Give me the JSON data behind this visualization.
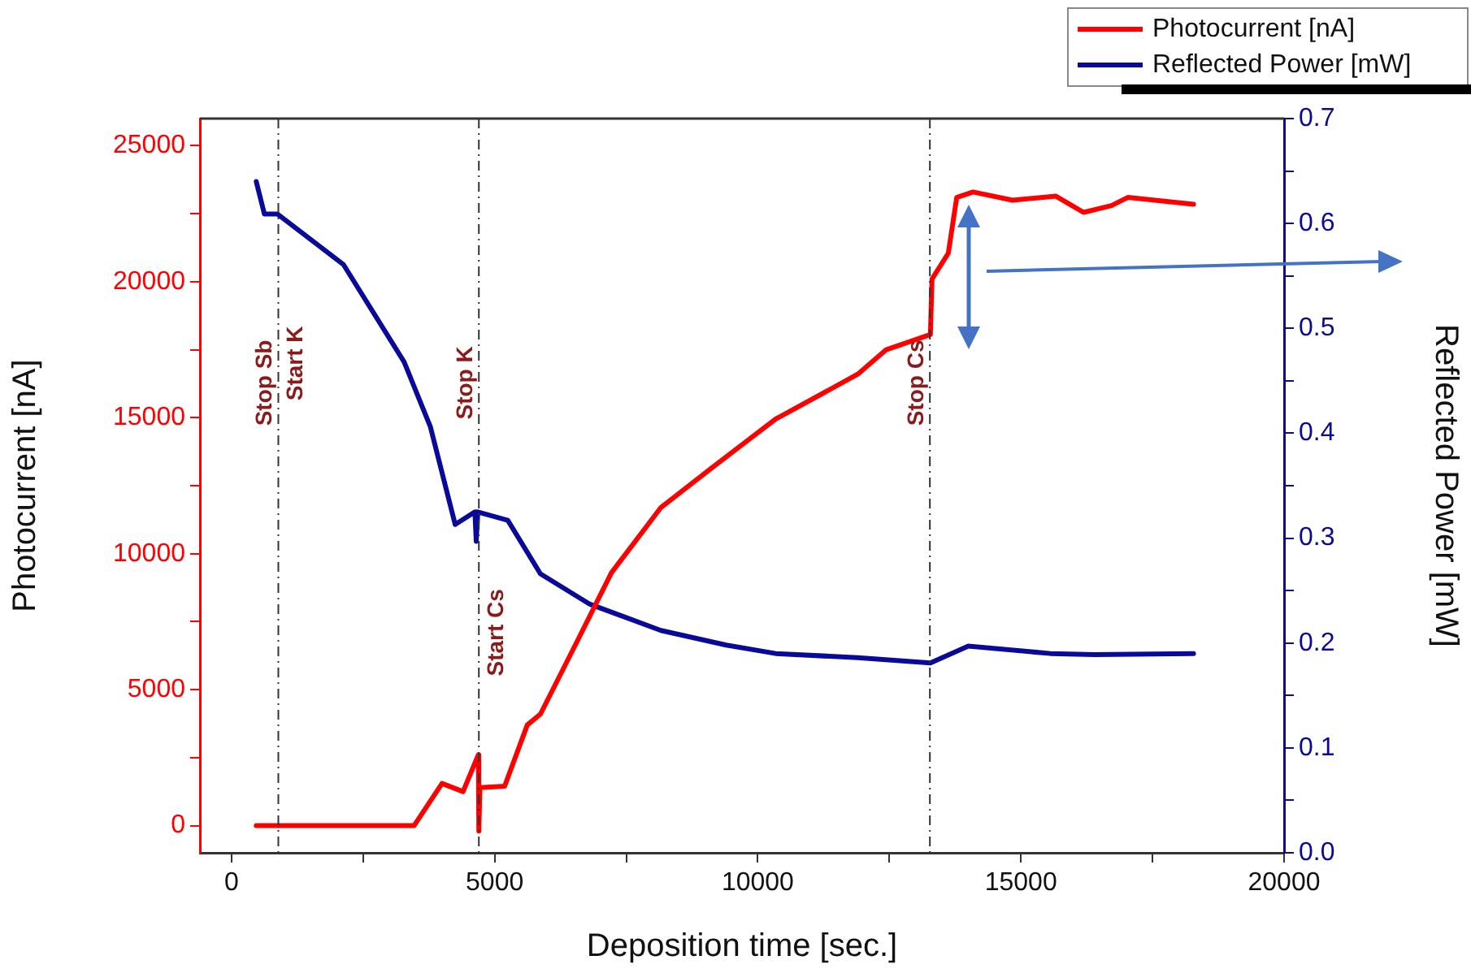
{
  "chart_data": {
    "type": "line",
    "xlabel": "Deposition time [sec.]",
    "ylabel": "Photocurrent [nA]",
    "y2label": "Reflected Power [mW]",
    "xlim": [
      -600,
      20000
    ],
    "xticks": [
      0,
      {
        "value": 2500,
        "label": null
      },
      5000,
      {
        "value": 7500,
        "label": null
      },
      10000,
      {
        "value": 12500,
        "label": null
      },
      15000,
      {
        "value": 17500,
        "label": null
      },
      20000
    ],
    "ylim": [
      -1000,
      26000
    ],
    "yticks": [
      0,
      {
        "value": 2500,
        "label": null
      },
      5000,
      {
        "value": 7500,
        "label": null
      },
      10000,
      {
        "value": 12500,
        "label": null
      },
      15000,
      {
        "value": 17500,
        "label": null
      },
      20000,
      {
        "value": 22500,
        "label": null
      },
      25000
    ],
    "y2lim": [
      0,
      0.7
    ],
    "y2ticks": [
      {
        "value": 0,
        "label": "0.0"
      },
      {
        "value": 0.05,
        "label": null
      },
      0.1,
      {
        "value": 0.15,
        "label": null
      },
      0.2,
      {
        "value": 0.25,
        "label": null
      },
      0.3,
      {
        "value": 0.35,
        "label": null
      },
      0.4,
      {
        "value": 0.45,
        "label": null
      },
      0.5,
      {
        "value": 0.55,
        "label": null
      },
      0.6,
      {
        "value": 0.65,
        "label": null
      },
      0.7
    ],
    "grid": false,
    "legend": "top right",
    "marker": "none",
    "line_style": "solid",
    "series": [
      {
        "name": "Photocurrent [nA]",
        "color": "#ff0000",
        "x": [
          470,
          3470,
          4000,
          4400,
          4690,
          4700,
          4720,
          5190,
          5620,
          5870,
          6600,
          7220,
          8160,
          9090,
          10340,
          11900,
          12440,
          13280,
          13310,
          13620,
          13780,
          14090,
          14840,
          15660,
          16190,
          16720,
          17030,
          18280
        ],
        "values": [
          0,
          0,
          1550,
          1250,
          2600,
          -200,
          1400,
          1450,
          3700,
          4100,
          6900,
          9300,
          11700,
          13100,
          14950,
          16600,
          17500,
          18060,
          20100,
          21050,
          23100,
          23300,
          23000,
          23150,
          22550,
          22800,
          23100,
          22850
        ]
      },
      {
        "name": "Reflected Power [mW]",
        "color": "#0a0a9a",
        "axis": "y2",
        "x": [
          470,
          625,
          875,
          2125,
          3280,
          3780,
          4250,
          4625,
          4650,
          4680,
          5250,
          5870,
          6810,
          8160,
          9400,
          10340,
          11900,
          13280,
          14000,
          15560,
          16400,
          18280
        ],
        "values": [
          0.64,
          0.609,
          0.609,
          0.561,
          0.468,
          0.406,
          0.313,
          0.325,
          0.297,
          0.325,
          0.317,
          0.266,
          0.237,
          0.212,
          0.198,
          0.19,
          0.186,
          0.181,
          0.197,
          0.19,
          0.189,
          0.19
        ]
      }
    ],
    "ref_lines": [
      {
        "axis": "x",
        "value": 890,
        "label": "Stop Sb",
        "color": "#333333"
      },
      {
        "axis": "x",
        "value": 4700,
        "label": "Stop K",
        "color": "#333333"
      },
      {
        "axis": "x",
        "value": 13270,
        "label": "Stop Cs",
        "color": "#333333"
      }
    ],
    "annotations": [
      {
        "text": "Start K",
        "x": 890,
        "y": 17000
      },
      {
        "text": "Start Cs",
        "x": 4700,
        "y": 7100
      }
    ]
  }
}
